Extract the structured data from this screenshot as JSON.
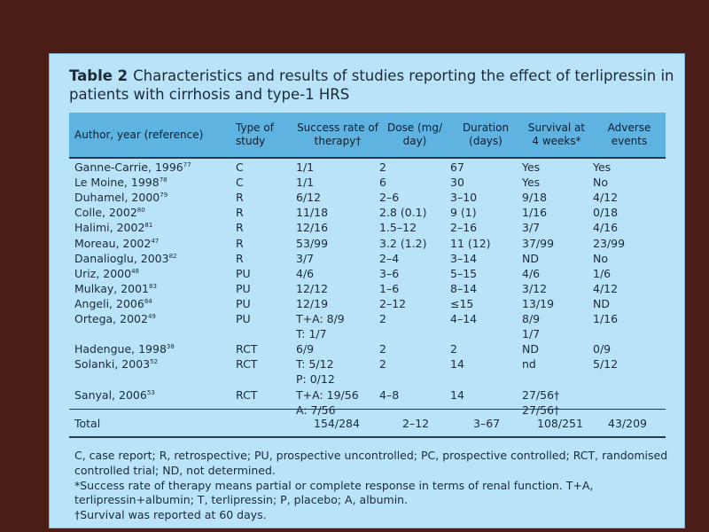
{
  "table": {
    "label": "Table 2",
    "caption": "Characteristics and results of studies reporting the effect of terlipressin in patients with cirrhosis and type-1 HRS",
    "headers": [
      "Author, year (reference)",
      "Type of study",
      "Success rate of therapy†",
      "Dose (mg/ day)",
      "Duration (days)",
      "Survival at 4 weeks*",
      "Adverse events"
    ],
    "rows": [
      {
        "author": "Ganne-Carrie, 1996",
        "ref": "77",
        "type": "C",
        "success": "1/1",
        "dose": "2",
        "duration": "67",
        "survival": "Yes",
        "adverse": "Yes"
      },
      {
        "author": "Le Moine, 1998",
        "ref": "78",
        "type": "C",
        "success": "1/1",
        "dose": "6",
        "duration": "30",
        "survival": "Yes",
        "adverse": "No"
      },
      {
        "author": "Duhamel, 2000",
        "ref": "79",
        "type": "R",
        "success": "6/12",
        "dose": "2–6",
        "duration": "3–10",
        "survival": "9/18",
        "adverse": "4/12"
      },
      {
        "author": "Colle, 2002",
        "ref": "80",
        "type": "R",
        "success": "11/18",
        "dose": "2.8 (0.1)",
        "duration": "9 (1)",
        "survival": "1/16",
        "adverse": "0/18"
      },
      {
        "author": "Halimi, 2002",
        "ref": "81",
        "type": "R",
        "success": "12/16",
        "dose": "1.5–12",
        "duration": "2–16",
        "survival": "3/7",
        "adverse": "4/16"
      },
      {
        "author": "Moreau, 2002",
        "ref": "47",
        "type": "R",
        "success": "53/99",
        "dose": "3.2 (1.2)",
        "duration": "11 (12)",
        "survival": "37/99",
        "adverse": "23/99"
      },
      {
        "author": "Danalioglu, 2003",
        "ref": "82",
        "type": "R",
        "success": "3/7",
        "dose": "2–4",
        "duration": "3–14",
        "survival": "ND",
        "adverse": "No"
      },
      {
        "author": "Uriz, 2000",
        "ref": "48",
        "type": "PU",
        "success": "4/6",
        "dose": "3–6",
        "duration": "5–15",
        "survival": "4/6",
        "adverse": "1/6"
      },
      {
        "author": "Mulkay, 2001",
        "ref": "83",
        "type": "PU",
        "success": "12/12",
        "dose": "1–6",
        "duration": "8–14",
        "survival": "3/12",
        "adverse": "4/12"
      },
      {
        "author": "Angeli, 2006",
        "ref": "84",
        "type": "PU",
        "success": "12/19",
        "dose": "2–12",
        "duration": "≤15",
        "survival": "13/19",
        "adverse": "ND"
      },
      {
        "author": "Ortega, 2002",
        "ref": "49",
        "type": "PU",
        "success": "T+A: 8/9",
        "dose": "2",
        "duration": "4–14",
        "survival": "8/9",
        "adverse": "1/16"
      },
      {
        "author": "",
        "ref": "",
        "type": "",
        "success": "T: 1/7",
        "dose": "",
        "duration": "",
        "survival": "1/7",
        "adverse": ""
      },
      {
        "author": "Hadengue, 1998",
        "ref": "38",
        "type": "RCT",
        "success": "6/9",
        "dose": "2",
        "duration": "2",
        "survival": "ND",
        "adverse": "0/9"
      },
      {
        "author": "Solanki, 2003",
        "ref": "52",
        "type": "RCT",
        "success": "T: 5/12",
        "dose": "2",
        "duration": "14",
        "survival": "nd",
        "adverse": "5/12"
      },
      {
        "author": "",
        "ref": "",
        "type": "",
        "success": "P: 0/12",
        "dose": "",
        "duration": "",
        "survival": "",
        "adverse": ""
      },
      {
        "author": "Sanyal, 2006",
        "ref": "53",
        "type": "RCT",
        "success": "T+A: 19/56",
        "dose": "4–8",
        "duration": "14",
        "survival": "27/56†",
        "adverse": ""
      },
      {
        "author": "",
        "ref": "",
        "type": "",
        "success": "A: 7/56",
        "dose": "",
        "duration": "",
        "survival": "27/56†",
        "adverse": ""
      }
    ],
    "total": {
      "label": "Total",
      "success": "154/284",
      "dose": "2–12",
      "duration": "3–67",
      "survival": "108/251",
      "adverse": "43/209"
    }
  },
  "footnotes": [
    "C, case report; R, retrospective; PU, prospective uncontrolled; PC, prospective controlled; RCT, randomised controlled trial; ND, not determined.",
    "*Success rate of therapy means partial or complete response in terms of renal function. T+A, terlipressin+albumin; T, terlipressin; P, placebo; A, albumin.",
    "†Survival was reported at 60 days."
  ]
}
